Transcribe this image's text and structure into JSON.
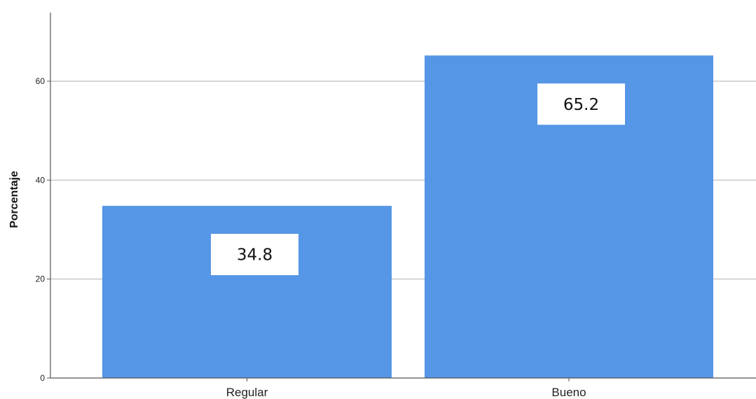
{
  "chart_data": {
    "type": "bar",
    "categories": [
      "Regular",
      "Bueno"
    ],
    "values": [
      34.8,
      65.2
    ],
    "data_labels": [
      "34.8",
      "65.2"
    ],
    "title": "",
    "xlabel": "",
    "ylabel": "Porcentaje",
    "ylim": [
      0,
      73
    ],
    "yticks": [
      0,
      20,
      40,
      60
    ],
    "ytick_labels": [
      "0",
      "20",
      "40",
      "60"
    ],
    "grid": "horizontal",
    "bar_color": "#5596e6",
    "grid_color": "#c8c8c8",
    "axis_color": "#555555"
  }
}
